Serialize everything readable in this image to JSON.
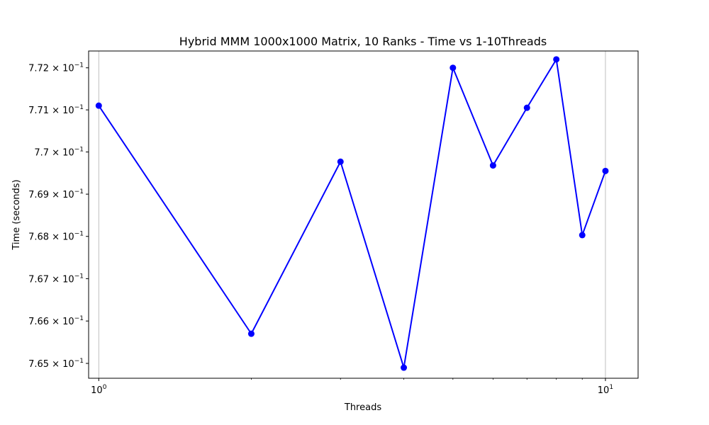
{
  "chart_data": {
    "type": "line",
    "title": "Hybrid MMM 1000x1000 Matrix, 10 Ranks - Time vs 1-10Threads",
    "xlabel": "Threads",
    "ylabel": "Time (seconds)",
    "x_scale": "log",
    "y_scale": "log",
    "xlim": [
      0.955,
      11.6
    ],
    "ylim": [
      0.76465,
      0.7724
    ],
    "grid": "vertical major gridlines at decades",
    "x_ticks": [
      {
        "value": 1,
        "base": "10",
        "exp": "0"
      },
      {
        "value": 10,
        "base": "10",
        "exp": "1"
      }
    ],
    "y_ticks": [
      {
        "value": 0.765,
        "mant": "7.65",
        "base": "10",
        "exp": "−1"
      },
      {
        "value": 0.766,
        "mant": "7.66",
        "base": "10",
        "exp": "−1"
      },
      {
        "value": 0.767,
        "mant": "7.67",
        "base": "10",
        "exp": "−1"
      },
      {
        "value": 0.768,
        "mant": "7.68",
        "base": "10",
        "exp": "−1"
      },
      {
        "value": 0.769,
        "mant": "7.69",
        "base": "10",
        "exp": "−1"
      },
      {
        "value": 0.77,
        "mant": "7.7",
        "base": "10",
        "exp": "−1"
      },
      {
        "value": 0.771,
        "mant": "7.71",
        "base": "10",
        "exp": "−1"
      },
      {
        "value": 0.772,
        "mant": "7.72",
        "base": "10",
        "exp": "−1"
      }
    ],
    "series": [
      {
        "color": "#0000ff",
        "marker": "circle",
        "x": [
          1,
          2,
          3,
          4,
          5,
          6,
          7,
          8,
          9,
          10
        ],
        "y": [
          0.7711,
          0.7657,
          0.76977,
          0.7649,
          0.772,
          0.76968,
          0.77105,
          0.7722,
          0.76803,
          0.76955
        ]
      }
    ]
  }
}
